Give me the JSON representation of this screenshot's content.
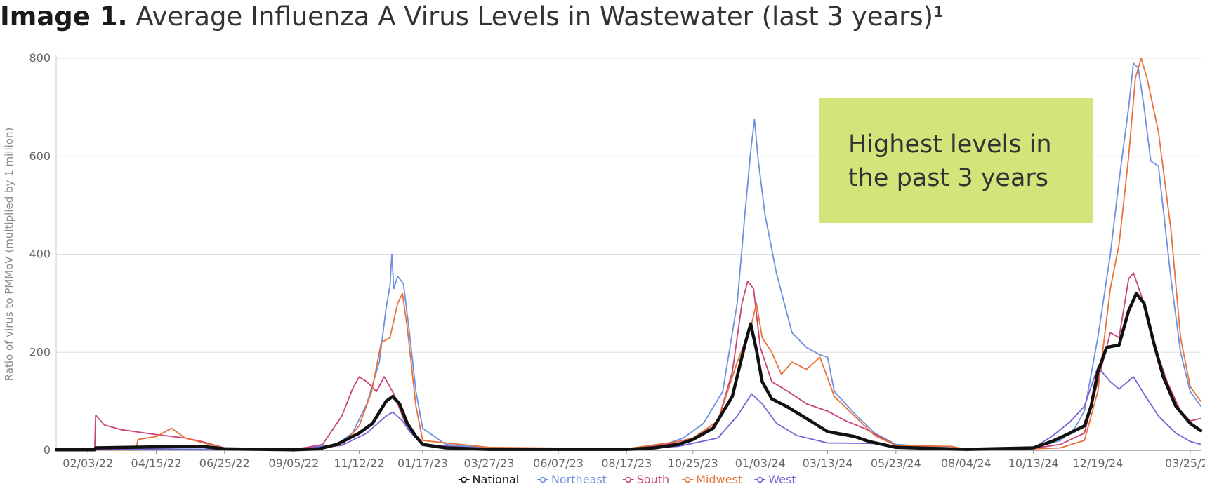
{
  "title": {
    "lead": "Image 1.",
    "text": "Average Influenza A Virus Levels in Wastewater (last 3 years)¹"
  },
  "callout": {
    "line1": "Highest levels in",
    "line2": "the past 3 years"
  },
  "chart_data": {
    "type": "line",
    "ylabel": "Ratio of virus to PMMoV (multiplied by 1 million)",
    "ylim": [
      0,
      800
    ],
    "yticks": [
      0,
      200,
      400,
      600,
      800
    ],
    "xlim": [
      "2022-01-01",
      "2025-04-05"
    ],
    "xticks": [
      {
        "date": "2022-02-03",
        "label": "02/03/22"
      },
      {
        "date": "2022-04-15",
        "label": "04/15/22"
      },
      {
        "date": "2022-06-25",
        "label": "06/25/22"
      },
      {
        "date": "2022-09-05",
        "label": "09/05/22"
      },
      {
        "date": "2022-11-12",
        "label": "11/12/22"
      },
      {
        "date": "2023-01-17",
        "label": "01/17/23"
      },
      {
        "date": "2023-03-27",
        "label": "03/27/23"
      },
      {
        "date": "2023-06-07",
        "label": "06/07/23"
      },
      {
        "date": "2023-08-17",
        "label": "08/17/23"
      },
      {
        "date": "2023-10-25",
        "label": "10/25/23"
      },
      {
        "date": "2024-01-03",
        "label": "01/03/24"
      },
      {
        "date": "2024-03-13",
        "label": "03/13/24"
      },
      {
        "date": "2024-05-23",
        "label": "05/23/24"
      },
      {
        "date": "2024-08-04",
        "label": "08/04/24"
      },
      {
        "date": "2024-10-13",
        "label": "10/13/24"
      },
      {
        "date": "2024-12-19",
        "label": "12/19/24"
      },
      {
        "date": "2025-03-25",
        "label": "03/25/25"
      }
    ],
    "grid": true,
    "legend_position": "bottom-center",
    "series": [
      {
        "name": "National",
        "color": "#111111",
        "points": [
          [
            "2022-01-01",
            1
          ],
          [
            "2022-02-10",
            1
          ],
          [
            "2022-02-11",
            5
          ],
          [
            "2022-04-15",
            7
          ],
          [
            "2022-06-01",
            8
          ],
          [
            "2022-06-25",
            3
          ],
          [
            "2022-09-05",
            1
          ],
          [
            "2022-10-01",
            3
          ],
          [
            "2022-10-20",
            12
          ],
          [
            "2022-11-12",
            35
          ],
          [
            "2022-11-26",
            55
          ],
          [
            "2022-12-10",
            100
          ],
          [
            "2022-12-17",
            110
          ],
          [
            "2022-12-24",
            95
          ],
          [
            "2023-01-01",
            55
          ],
          [
            "2023-01-10",
            28
          ],
          [
            "2023-01-17",
            12
          ],
          [
            "2023-02-10",
            5
          ],
          [
            "2023-03-27",
            2
          ],
          [
            "2023-08-17",
            2
          ],
          [
            "2023-09-15",
            5
          ],
          [
            "2023-10-10",
            12
          ],
          [
            "2023-10-25",
            22
          ],
          [
            "2023-11-15",
            45
          ],
          [
            "2023-12-05",
            110
          ],
          [
            "2023-12-18",
            215
          ],
          [
            "2023-12-24",
            258
          ],
          [
            "2023-12-30",
            205
          ],
          [
            "2024-01-05",
            140
          ],
          [
            "2024-01-15",
            105
          ],
          [
            "2024-01-30",
            90
          ],
          [
            "2024-02-20",
            65
          ],
          [
            "2024-03-13",
            38
          ],
          [
            "2024-04-10",
            28
          ],
          [
            "2024-04-25",
            18
          ],
          [
            "2024-05-23",
            6
          ],
          [
            "2024-08-04",
            2
          ],
          [
            "2024-10-13",
            5
          ],
          [
            "2024-11-01",
            18
          ],
          [
            "2024-11-20",
            35
          ],
          [
            "2024-12-05",
            50
          ],
          [
            "2024-12-12",
            90
          ],
          [
            "2024-12-19",
            160
          ],
          [
            "2024-12-28",
            210
          ],
          [
            "2025-01-10",
            215
          ],
          [
            "2025-01-20",
            285
          ],
          [
            "2025-01-28",
            320
          ],
          [
            "2025-02-05",
            300
          ],
          [
            "2025-02-15",
            220
          ],
          [
            "2025-02-25",
            150
          ],
          [
            "2025-03-10",
            90
          ],
          [
            "2025-03-25",
            55
          ],
          [
            "2025-04-05",
            40
          ]
        ]
      },
      {
        "name": "Northeast",
        "color": "#6f8fe0",
        "points": [
          [
            "2022-01-01",
            2
          ],
          [
            "2022-04-15",
            3
          ],
          [
            "2022-06-25",
            2
          ],
          [
            "2022-09-05",
            3
          ],
          [
            "2022-10-20",
            12
          ],
          [
            "2022-11-05",
            35
          ],
          [
            "2022-11-20",
            95
          ],
          [
            "2022-12-03",
            180
          ],
          [
            "2022-12-10",
            290
          ],
          [
            "2022-12-14",
            335
          ],
          [
            "2022-12-16",
            400
          ],
          [
            "2022-12-18",
            330
          ],
          [
            "2022-12-22",
            355
          ],
          [
            "2022-12-28",
            340
          ],
          [
            "2023-01-03",
            245
          ],
          [
            "2023-01-10",
            120
          ],
          [
            "2023-01-17",
            45
          ],
          [
            "2023-02-10",
            12
          ],
          [
            "2023-03-27",
            4
          ],
          [
            "2023-08-17",
            3
          ],
          [
            "2023-09-20",
            8
          ],
          [
            "2023-10-15",
            25
          ],
          [
            "2023-11-05",
            55
          ],
          [
            "2023-11-25",
            120
          ],
          [
            "2023-12-10",
            300
          ],
          [
            "2023-12-18",
            480
          ],
          [
            "2023-12-24",
            610
          ],
          [
            "2023-12-28",
            675
          ],
          [
            "2024-01-01",
            590
          ],
          [
            "2024-01-08",
            480
          ],
          [
            "2024-01-20",
            360
          ],
          [
            "2024-02-05",
            240
          ],
          [
            "2024-02-20",
            210
          ],
          [
            "2024-03-05",
            195
          ],
          [
            "2024-03-13",
            190
          ],
          [
            "2024-03-20",
            120
          ],
          [
            "2024-04-10",
            75
          ],
          [
            "2024-05-01",
            35
          ],
          [
            "2024-05-23",
            12
          ],
          [
            "2024-08-04",
            3
          ],
          [
            "2024-10-13",
            5
          ],
          [
            "2024-11-10",
            20
          ],
          [
            "2024-11-25",
            45
          ],
          [
            "2024-12-05",
            80
          ],
          [
            "2024-12-19",
            230
          ],
          [
            "2025-01-01",
            400
          ],
          [
            "2025-01-10",
            550
          ],
          [
            "2025-01-20",
            700
          ],
          [
            "2025-01-25",
            790
          ],
          [
            "2025-01-30",
            780
          ],
          [
            "2025-02-05",
            700
          ],
          [
            "2025-02-12",
            590
          ],
          [
            "2025-02-20",
            580
          ],
          [
            "2025-03-05",
            350
          ],
          [
            "2025-03-15",
            200
          ],
          [
            "2025-03-25",
            120
          ],
          [
            "2025-04-05",
            90
          ]
        ]
      },
      {
        "name": "South",
        "color": "#c9437a",
        "points": [
          [
            "2022-01-01",
            1
          ],
          [
            "2022-02-10",
            1
          ],
          [
            "2022-02-11",
            72
          ],
          [
            "2022-02-20",
            52
          ],
          [
            "2022-03-10",
            42
          ],
          [
            "2022-04-15",
            32
          ],
          [
            "2022-05-15",
            25
          ],
          [
            "2022-06-01",
            18
          ],
          [
            "2022-06-25",
            5
          ],
          [
            "2022-09-05",
            1
          ],
          [
            "2022-10-05",
            12
          ],
          [
            "2022-10-25",
            70
          ],
          [
            "2022-11-05",
            125
          ],
          [
            "2022-11-12",
            150
          ],
          [
            "2022-11-20",
            140
          ],
          [
            "2022-11-30",
            120
          ],
          [
            "2022-12-08",
            150
          ],
          [
            "2022-12-18",
            115
          ],
          [
            "2023-01-01",
            45
          ],
          [
            "2023-01-17",
            10
          ],
          [
            "2023-03-27",
            2
          ],
          [
            "2023-08-17",
            3
          ],
          [
            "2023-10-10",
            15
          ],
          [
            "2023-10-25",
            22
          ],
          [
            "2023-11-20",
            60
          ],
          [
            "2023-12-05",
            160
          ],
          [
            "2023-12-15",
            300
          ],
          [
            "2023-12-21",
            345
          ],
          [
            "2023-12-27",
            330
          ],
          [
            "2024-01-03",
            210
          ],
          [
            "2024-01-15",
            140
          ],
          [
            "2024-02-01",
            120
          ],
          [
            "2024-02-20",
            95
          ],
          [
            "2024-03-13",
            80
          ],
          [
            "2024-04-01",
            60
          ],
          [
            "2024-04-20",
            45
          ],
          [
            "2024-05-23",
            10
          ],
          [
            "2024-08-04",
            2
          ],
          [
            "2024-10-13",
            4
          ],
          [
            "2024-11-10",
            12
          ],
          [
            "2024-12-05",
            35
          ],
          [
            "2024-12-19",
            140
          ],
          [
            "2025-01-01",
            240
          ],
          [
            "2025-01-10",
            230
          ],
          [
            "2025-01-20",
            350
          ],
          [
            "2025-01-25",
            362
          ],
          [
            "2025-02-05",
            300
          ],
          [
            "2025-02-15",
            220
          ],
          [
            "2025-03-01",
            140
          ],
          [
            "2025-03-15",
            80
          ],
          [
            "2025-03-25",
            60
          ],
          [
            "2025-04-05",
            65
          ]
        ]
      },
      {
        "name": "Midwest",
        "color": "#e8713a",
        "points": [
          [
            "2022-01-01",
            1
          ],
          [
            "2022-03-25",
            1
          ],
          [
            "2022-03-27",
            22
          ],
          [
            "2022-04-15",
            28
          ],
          [
            "2022-05-01",
            45
          ],
          [
            "2022-05-15",
            25
          ],
          [
            "2022-06-25",
            4
          ],
          [
            "2022-09-05",
            1
          ],
          [
            "2022-10-25",
            10
          ],
          [
            "2022-11-12",
            50
          ],
          [
            "2022-11-25",
            120
          ],
          [
            "2022-12-05",
            220
          ],
          [
            "2022-12-14",
            230
          ],
          [
            "2022-12-22",
            300
          ],
          [
            "2022-12-27",
            320
          ],
          [
            "2023-01-01",
            250
          ],
          [
            "2023-01-10",
            90
          ],
          [
            "2023-01-17",
            20
          ],
          [
            "2023-03-27",
            6
          ],
          [
            "2023-08-17",
            3
          ],
          [
            "2023-10-10",
            18
          ],
          [
            "2023-10-25",
            25
          ],
          [
            "2023-11-20",
            60
          ],
          [
            "2023-12-10",
            180
          ],
          [
            "2023-12-24",
            250
          ],
          [
            "2023-12-30",
            300
          ],
          [
            "2024-01-05",
            230
          ],
          [
            "2024-01-15",
            200
          ],
          [
            "2024-01-25",
            155
          ],
          [
            "2024-02-05",
            180
          ],
          [
            "2024-02-20",
            165
          ],
          [
            "2024-03-05",
            190
          ],
          [
            "2024-03-20",
            110
          ],
          [
            "2024-04-10",
            70
          ],
          [
            "2024-05-01",
            30
          ],
          [
            "2024-05-23",
            10
          ],
          [
            "2024-07-20",
            8
          ],
          [
            "2024-08-04",
            2
          ],
          [
            "2024-10-13",
            3
          ],
          [
            "2024-11-10",
            5
          ],
          [
            "2024-12-05",
            20
          ],
          [
            "2024-12-19",
            120
          ],
          [
            "2025-01-01",
            330
          ],
          [
            "2025-01-10",
            420
          ],
          [
            "2025-01-20",
            600
          ],
          [
            "2025-01-27",
            760
          ],
          [
            "2025-02-02",
            800
          ],
          [
            "2025-02-08",
            760
          ],
          [
            "2025-02-20",
            650
          ],
          [
            "2025-03-05",
            450
          ],
          [
            "2025-03-15",
            230
          ],
          [
            "2025-03-25",
            130
          ],
          [
            "2025-04-05",
            100
          ]
        ]
      },
      {
        "name": "West",
        "color": "#7860d4",
        "points": [
          [
            "2022-01-01",
            1
          ],
          [
            "2022-04-15",
            2
          ],
          [
            "2022-06-25",
            1
          ],
          [
            "2022-09-05",
            2
          ],
          [
            "2022-10-25",
            10
          ],
          [
            "2022-11-20",
            35
          ],
          [
            "2022-12-10",
            70
          ],
          [
            "2022-12-17",
            78
          ],
          [
            "2022-12-27",
            60
          ],
          [
            "2023-01-05",
            35
          ],
          [
            "2023-01-17",
            12
          ],
          [
            "2023-03-27",
            3
          ],
          [
            "2023-08-17",
            2
          ],
          [
            "2023-10-10",
            8
          ],
          [
            "2023-11-20",
            25
          ],
          [
            "2023-12-10",
            70
          ],
          [
            "2023-12-25",
            115
          ],
          [
            "2024-01-05",
            95
          ],
          [
            "2024-01-20",
            55
          ],
          [
            "2024-02-10",
            30
          ],
          [
            "2024-03-13",
            15
          ],
          [
            "2024-05-01",
            14
          ],
          [
            "2024-05-23",
            6
          ],
          [
            "2024-08-04",
            2
          ],
          [
            "2024-10-13",
            5
          ],
          [
            "2024-11-01",
            28
          ],
          [
            "2024-11-20",
            58
          ],
          [
            "2024-12-05",
            90
          ],
          [
            "2024-12-19",
            170
          ],
          [
            "2025-01-01",
            140
          ],
          [
            "2025-01-10",
            125
          ],
          [
            "2025-01-25",
            150
          ],
          [
            "2025-02-05",
            115
          ],
          [
            "2025-02-20",
            70
          ],
          [
            "2025-03-10",
            35
          ],
          [
            "2025-03-25",
            18
          ],
          [
            "2025-04-05",
            12
          ]
        ]
      }
    ]
  }
}
